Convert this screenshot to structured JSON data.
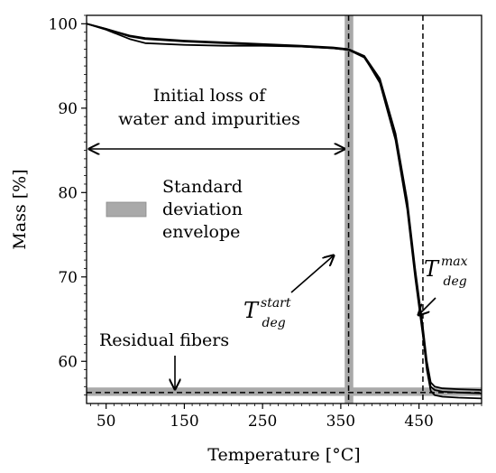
{
  "chart_data": {
    "type": "line",
    "xlabel": "Temperature [°C]",
    "ylabel": "Mass [%]",
    "xlim": [
      25,
      530
    ],
    "ylim": [
      55,
      101
    ],
    "xticks": [
      50,
      150,
      250,
      350,
      450
    ],
    "xtick_labels": [
      "50",
      "150",
      "250",
      "350",
      "450"
    ],
    "yticks": [
      60,
      70,
      80,
      90,
      100
    ],
    "ytick_labels": [
      "60",
      "70",
      "80",
      "90",
      "100"
    ],
    "grid": false,
    "series": [
      {
        "x": [
          25,
          50,
          80,
          100,
          150,
          200,
          250,
          300,
          340,
          360,
          380,
          400,
          420,
          435,
          445,
          455,
          460,
          465,
          470,
          480,
          500,
          530
        ],
        "y": [
          100,
          99.4,
          98.6,
          98.3,
          98.0,
          97.8,
          97.6,
          97.4,
          97.2,
          97.0,
          96.2,
          93.5,
          87.0,
          79.0,
          71.0,
          64.0,
          60.0,
          57.5,
          57.0,
          56.8,
          56.7,
          56.6
        ]
      },
      {
        "x": [
          25,
          50,
          80,
          100,
          150,
          200,
          250,
          300,
          340,
          360,
          380,
          400,
          420,
          435,
          445,
          455,
          460,
          465,
          470,
          480,
          500,
          530
        ],
        "y": [
          100,
          99.3,
          98.2,
          97.7,
          97.5,
          97.4,
          97.4,
          97.3,
          97.1,
          96.9,
          96.0,
          93.2,
          86.6,
          78.5,
          70.5,
          63.5,
          59.5,
          57.0,
          56.6,
          56.4,
          56.3,
          56.2
        ]
      },
      {
        "x": [
          25,
          50,
          80,
          100,
          150,
          200,
          250,
          300,
          340,
          360,
          380,
          400,
          420,
          435,
          445,
          455,
          460,
          465,
          470,
          480,
          500,
          530
        ],
        "y": [
          100,
          99.4,
          98.5,
          98.2,
          97.9,
          97.7,
          97.5,
          97.3,
          97.1,
          96.9,
          96.1,
          93.0,
          86.2,
          78.0,
          70.0,
          63.0,
          59.0,
          56.5,
          56.0,
          55.8,
          55.7,
          55.6
        ]
      }
    ],
    "bands": {
      "t_start_range": [
        355,
        366
      ],
      "residual_range": [
        55.9,
        56.9
      ]
    },
    "vlines": {
      "t_start": 360,
      "t_max": 455
    },
    "hline": 56.3,
    "arrow_range": [
      25,
      357
    ],
    "annotations": {
      "initial_loss": [
        "Initial loss of",
        "water and impurities"
      ],
      "legend_label": [
        "Standard",
        "deviation",
        "envelope"
      ],
      "residual": "Residual fibers",
      "t_start_main": "T",
      "t_start_sup": "start",
      "t_start_sub": "deg",
      "t_max_main": "T",
      "t_max_sup": "max",
      "t_max_sub": "deg"
    },
    "colors": {
      "curve": "#000000",
      "band": "#a9a9a9",
      "axes": "#000000"
    }
  }
}
